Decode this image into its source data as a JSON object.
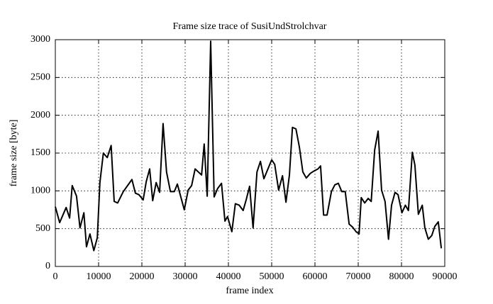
{
  "chart_data": {
    "type": "line",
    "title": "Frame size trace of SusiUndStrolchvar",
    "xlabel": "frame index",
    "ylabel": "frame size [byte]",
    "x": [
      0,
      1000,
      2500,
      3300,
      3900,
      4900,
      5700,
      6600,
      7200,
      8000,
      8900,
      9700,
      10300,
      11100,
      12000,
      12900,
      13600,
      14400,
      15700,
      16700,
      17700,
      18500,
      19300,
      20300,
      21000,
      21800,
      22500,
      23300,
      24100,
      24900,
      25700,
      26600,
      27500,
      28200,
      29000,
      29800,
      30700,
      31500,
      32300,
      33800,
      34400,
      35100,
      35900,
      36700,
      37500,
      38400,
      39200,
      39800,
      40800,
      41600,
      42500,
      43400,
      44100,
      44900,
      45700,
      46600,
      47400,
      48200,
      49200,
      50000,
      50700,
      51600,
      52500,
      53300,
      54100,
      54800,
      55600,
      56400,
      57200,
      58000,
      58900,
      59700,
      60700,
      61300,
      62000,
      62800,
      63800,
      64600,
      65400,
      66200,
      67000,
      67900,
      68700,
      69500,
      70200,
      70700,
      71500,
      72300,
      73000,
      73800,
      74600,
      75400,
      76200,
      77000,
      77700,
      78500,
      79200,
      80100,
      80900,
      81600,
      82500,
      83100,
      83900,
      84800,
      85400,
      86200,
      87000,
      87700,
      88500,
      89200
    ],
    "series": [
      {
        "name": "frame size",
        "color": "#000000",
        "values": [
          790,
          580,
          780,
          640,
          1070,
          930,
          510,
          710,
          260,
          430,
          210,
          380,
          1110,
          1500,
          1440,
          1600,
          860,
          840,
          990,
          1070,
          1150,
          970,
          950,
          880,
          1120,
          1290,
          870,
          1110,
          980,
          1890,
          1250,
          990,
          990,
          1090,
          920,
          750,
          1010,
          1070,
          1290,
          1210,
          1620,
          930,
          2980,
          920,
          1030,
          1100,
          600,
          660,
          460,
          830,
          810,
          740,
          880,
          1060,
          510,
          1250,
          1390,
          1160,
          1300,
          1410,
          1350,
          1010,
          1200,
          850,
          1210,
          1840,
          1820,
          1580,
          1250,
          1170,
          1230,
          1260,
          1290,
          1330,
          680,
          680,
          990,
          1080,
          1100,
          990,
          990,
          560,
          520,
          460,
          430,
          910,
          840,
          900,
          860,
          1540,
          1790,
          1010,
          860,
          360,
          810,
          980,
          950,
          710,
          810,
          740,
          1510,
          1340,
          690,
          810,
          510,
          360,
          410,
          530,
          590,
          240
        ]
      }
    ],
    "xlim": [
      0,
      90000
    ],
    "ylim": [
      0,
      3000
    ],
    "xticks": [
      0,
      10000,
      20000,
      30000,
      40000,
      50000,
      60000,
      70000,
      80000,
      90000
    ],
    "yticks": [
      0,
      500,
      1000,
      1500,
      2000,
      2500,
      3000
    ],
    "grid": true
  }
}
